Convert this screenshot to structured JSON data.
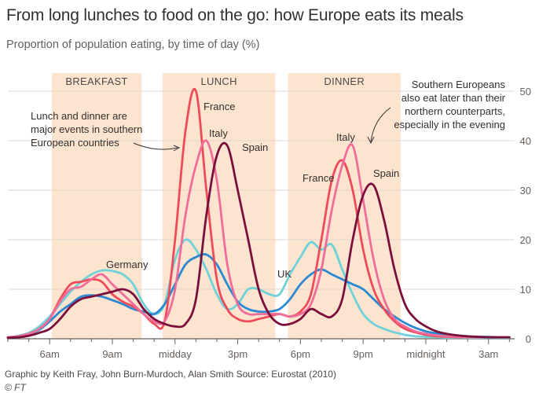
{
  "title": "From long lunches to food on the go: how Europe eats its meals",
  "subtitle": "Proportion of population eating, by time of day (%)",
  "source": "Graphic by Keith Fray, John Burn-Murdoch, Alan Smith   Source: Eurostat (2010)",
  "credit": "© FT",
  "chart_data": {
    "type": "line",
    "x_unit": "hour of day (4 = 4am; values above 24 are past midnight)",
    "xlim": [
      4,
      28.25
    ],
    "ylim": [
      0,
      50
    ],
    "yticks": [
      0,
      10,
      20,
      30,
      40,
      50
    ],
    "ytick_labels": [
      "0",
      "10",
      "20",
      "30",
      "40",
      "50"
    ],
    "xticks": [
      6,
      9,
      12,
      15,
      18,
      21,
      24,
      27
    ],
    "xtick_labels": [
      "6am",
      "9am",
      "midday",
      "3pm",
      "6pm",
      "9pm",
      "midnight",
      "3am"
    ],
    "grid": true,
    "y_axis_position": "right",
    "shaded_periods": [
      {
        "label": "BREAKFAST",
        "from": 6.1,
        "to": 10.4
      },
      {
        "label": "LUNCH",
        "from": 11.4,
        "to": 16.8
      },
      {
        "label": "DINNER",
        "from": 17.4,
        "to": 22.8
      }
    ],
    "annotations": [
      {
        "lines": [
          "Lunch and dinner are",
          "major events in southern",
          "European countries"
        ]
      },
      {
        "lines": [
          "Southern Europeans",
          "also eat later than their",
          "northern counterparts,",
          "especially in the  evening"
        ]
      }
    ],
    "series": [
      {
        "name": "Germany",
        "color": "#6ed2d9",
        "x": [
          4,
          4.5,
          5,
          5.5,
          6,
          6.5,
          7,
          7.5,
          8,
          8.5,
          9,
          9.5,
          10,
          10.5,
          11,
          11.5,
          12,
          12.5,
          13,
          13.5,
          14,
          14.5,
          15,
          15.5,
          16,
          16.5,
          17,
          17.5,
          18,
          18.5,
          19,
          19.5,
          20,
          20.5,
          21,
          21.5,
          22,
          22.5,
          23,
          23.5,
          24,
          24.5,
          25,
          25.5,
          26,
          26.5,
          27,
          27.5,
          28
        ],
        "values": [
          0.3,
          0.6,
          1.2,
          2.5,
          4.5,
          7,
          9.5,
          11.5,
          13,
          13.8,
          13.7,
          13,
          11,
          7,
          5,
          7,
          16,
          20,
          18,
          14,
          9,
          6,
          7,
          10,
          10,
          9,
          9,
          13,
          16.5,
          19.5,
          18,
          19,
          14,
          9,
          5,
          3,
          2,
          1.3,
          0.8,
          0.5,
          0.4,
          0.3,
          0.2,
          0.2,
          0.2,
          0.2,
          0.2,
          0.2,
          0.2
        ]
      },
      {
        "name": "UK",
        "color": "#2a8ad1",
        "x": [
          4,
          4.5,
          5,
          5.5,
          6,
          6.5,
          7,
          7.5,
          8,
          8.5,
          9,
          9.5,
          10,
          10.5,
          11,
          11.5,
          12,
          12.5,
          13,
          13.5,
          14,
          14.5,
          15,
          15.5,
          16,
          16.5,
          17,
          17.5,
          18,
          18.5,
          19,
          19.5,
          20,
          20.5,
          21,
          21.5,
          22,
          22.5,
          23,
          23.5,
          24,
          24.5,
          25,
          25.5,
          26,
          26.5,
          27,
          27.5,
          28
        ],
        "values": [
          0.3,
          0.5,
          1,
          1.8,
          3.5,
          5.5,
          7,
          8.5,
          8.8,
          8.5,
          7.8,
          7,
          6,
          5.5,
          5,
          7,
          11,
          15,
          16.5,
          17,
          15,
          11,
          7.5,
          6,
          5.5,
          5.5,
          6,
          8,
          11,
          13,
          14,
          13,
          12,
          11,
          10,
          8,
          6,
          4.5,
          3.2,
          2.2,
          1.5,
          1.1,
          0.8,
          0.6,
          0.5,
          0.4,
          0.4,
          0.3,
          0.3
        ]
      },
      {
        "name": "France",
        "color": "#ef4a5a",
        "x": [
          4,
          4.5,
          5,
          5.5,
          6,
          6.5,
          7,
          7.5,
          8,
          8.5,
          9,
          9.5,
          10,
          10.5,
          11,
          11.5,
          12,
          12.5,
          13,
          13.5,
          14,
          14.5,
          15,
          15.5,
          16,
          16.5,
          17,
          17.5,
          18,
          18.5,
          19,
          19.5,
          20,
          20.5,
          21,
          21.5,
          22,
          22.5,
          23,
          23.5,
          24,
          24.5,
          25,
          25.5,
          26,
          26.5,
          27,
          27.5,
          28
        ],
        "values": [
          0.3,
          0.5,
          1,
          2,
          4,
          8,
          11,
          11.5,
          12,
          11.5,
          9,
          7.5,
          6.5,
          5,
          3,
          3.5,
          20,
          42,
          50,
          30,
          12,
          6,
          4,
          3.5,
          4,
          4.5,
          5,
          4.5,
          5.5,
          9,
          20,
          32,
          36,
          30,
          18,
          10,
          6,
          3.5,
          2,
          1.3,
          0.8,
          0.5,
          0.4,
          0.3,
          0.3,
          0.3,
          0.3,
          0.3,
          0.3
        ]
      },
      {
        "name": "Italy",
        "color": "#f06d9a",
        "x": [
          4,
          4.5,
          5,
          5.5,
          6,
          6.5,
          7,
          7.5,
          8,
          8.5,
          9,
          9.5,
          10,
          10.5,
          11,
          11.5,
          12,
          12.5,
          13,
          13.5,
          14,
          14.5,
          15,
          15.5,
          16,
          16.5,
          17,
          17.5,
          18,
          18.5,
          19,
          19.5,
          20,
          20.5,
          21,
          21.5,
          22,
          22.5,
          23,
          23.5,
          24,
          24.5,
          25,
          25.5,
          26,
          26.5,
          27,
          27.5,
          28
        ],
        "values": [
          0.3,
          0.5,
          1,
          2,
          4,
          7.5,
          10,
          10.5,
          12,
          13,
          11,
          9,
          7,
          5,
          3.5,
          3.5,
          10,
          25,
          35,
          40,
          32,
          15,
          7,
          5,
          5,
          5,
          5,
          4.5,
          5,
          7,
          14,
          26,
          35,
          39,
          28,
          16,
          8,
          4,
          2.5,
          1.5,
          1,
          0.7,
          0.5,
          0.4,
          0.3,
          0.3,
          0.3,
          0.3,
          0.3
        ]
      },
      {
        "name": "Spain",
        "color": "#7a0f3c",
        "x": [
          4,
          4.5,
          5,
          5.5,
          6,
          6.5,
          7,
          7.5,
          8,
          8.5,
          9,
          9.5,
          10,
          10.5,
          11,
          11.5,
          12,
          12.5,
          13,
          13.5,
          14,
          14.5,
          15,
          15.5,
          16,
          16.5,
          17,
          17.5,
          18,
          18.5,
          19,
          19.5,
          20,
          20.5,
          21,
          21.5,
          22,
          22.5,
          23,
          23.5,
          24,
          24.5,
          25,
          25.5,
          26,
          26.5,
          27,
          27.5,
          28
        ],
        "values": [
          0.2,
          0.3,
          0.6,
          1.2,
          2,
          4,
          6.5,
          8,
          8.5,
          9,
          9.5,
          10,
          9,
          6,
          4,
          3,
          2.5,
          3,
          8,
          25,
          37,
          39,
          30,
          20,
          10,
          5,
          3,
          3,
          4,
          6,
          5,
          4.5,
          8,
          20,
          29,
          31,
          24,
          14,
          7,
          4,
          2.5,
          1.5,
          1,
          0.7,
          0.5,
          0.4,
          0.3,
          0.3,
          0.3
        ]
      }
    ],
    "series_labels": [
      {
        "text": "Germany"
      },
      {
        "text": "UK"
      },
      {
        "text": "France"
      },
      {
        "text": "Italy"
      },
      {
        "text": "Spain"
      },
      {
        "text": "France"
      },
      {
        "text": "Italy"
      },
      {
        "text": "Spain"
      }
    ]
  }
}
